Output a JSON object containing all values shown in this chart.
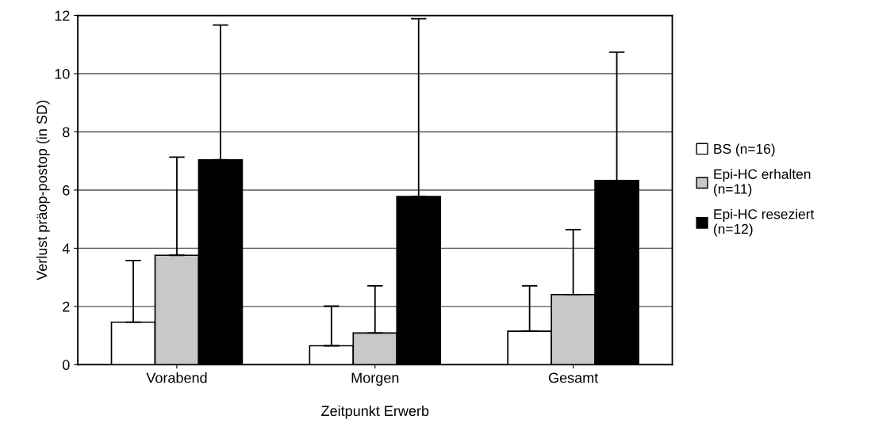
{
  "chart_data": {
    "type": "bar",
    "xlabel": "Zeitpunkt Erwerb",
    "ylabel": "Verlust präop-postop (in SD)",
    "categories": [
      "Vorabend",
      "Morgen",
      "Gesamt"
    ],
    "series": [
      {
        "name": "BS (n=16)",
        "color": "#ffffff",
        "values": [
          1.46,
          0.65,
          1.15
        ],
        "errors": [
          [
            1.46,
            3.58
          ],
          [
            0.65,
            2.01
          ],
          [
            1.15,
            2.71
          ]
        ]
      },
      {
        "name": "Epi-HC erhalten\n(n=11)",
        "color": "#c8c8c8",
        "values": [
          3.76,
          1.09,
          2.41
        ],
        "errors": [
          [
            3.76,
            7.13
          ],
          [
            1.09,
            2.71
          ],
          [
            2.41,
            4.64
          ]
        ]
      },
      {
        "name": "Epi-HC reseziert\n(n=12)",
        "color": "#000000",
        "values": [
          7.04,
          5.78,
          6.33
        ],
        "errors": [
          [
            7.04,
            11.67
          ],
          [
            5.78,
            11.89
          ],
          [
            6.33,
            10.74
          ]
        ]
      }
    ],
    "ylim": [
      0,
      12
    ],
    "yticks": [
      0,
      2,
      4,
      6,
      8,
      10,
      12
    ],
    "grid": "y",
    "legend": "right"
  }
}
